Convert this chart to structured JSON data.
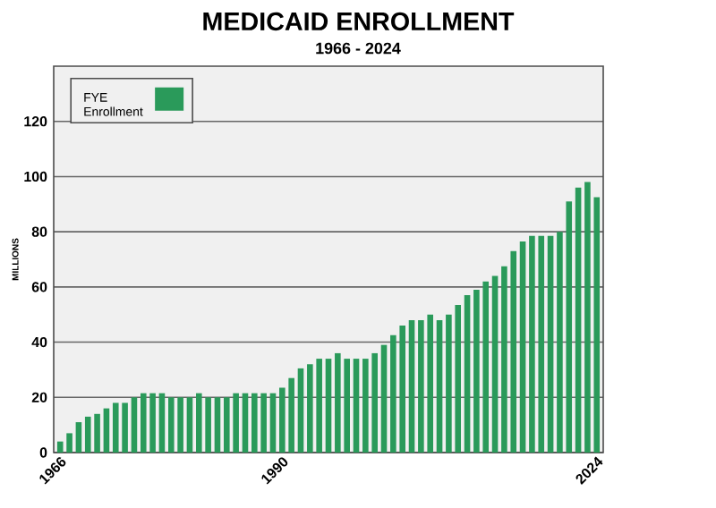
{
  "chart_data": {
    "type": "bar",
    "title": "MEDICAID ENROLLMENT",
    "subtitle": "1966 - 2024",
    "ylabel": "MILLIONS",
    "categories": [
      "1966",
      null,
      null,
      null,
      null,
      null,
      null,
      null,
      null,
      null,
      null,
      null,
      null,
      null,
      null,
      null,
      null,
      null,
      null,
      null,
      null,
      null,
      null,
      null,
      "1990",
      null,
      null,
      null,
      null,
      null,
      null,
      null,
      null,
      null,
      null,
      null,
      null,
      null,
      null,
      null,
      null,
      null,
      null,
      null,
      null,
      null,
      null,
      null,
      null,
      null,
      null,
      null,
      null,
      null,
      null,
      null,
      null,
      null,
      "2024"
    ],
    "series": [
      {
        "name": "FYE Enrollment",
        "color": "#2a9a5a",
        "values": [
          4,
          7,
          11,
          13,
          14,
          16,
          18,
          18,
          20,
          21.5,
          21.5,
          21.5,
          20,
          20,
          20,
          21.5,
          20,
          20,
          20,
          21.5,
          21.5,
          21.5,
          21.5,
          21.5,
          23.5,
          27,
          30.5,
          32,
          34,
          34,
          36,
          34,
          34,
          34,
          36,
          39,
          42.5,
          46,
          48,
          48,
          50,
          48,
          50,
          53.5,
          57,
          59,
          62,
          64,
          67.5,
          73,
          76.5,
          78.5,
          78.5,
          78.5,
          80,
          91,
          96,
          98,
          92.5
        ]
      }
    ],
    "ylim": [
      0,
      140
    ],
    "yticks": [
      0,
      20,
      40,
      60,
      80,
      100,
      120
    ],
    "grid": "y",
    "legend": "top left"
  }
}
